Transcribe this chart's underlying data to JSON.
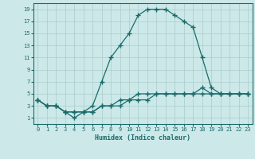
{
  "xlabel": "Humidex (Indice chaleur)",
  "bg_color": "#cce8e8",
  "grid_color": "#aacccc",
  "line_color": "#1a6b6b",
  "xlim": [
    -0.5,
    23.5
  ],
  "ylim": [
    0,
    20
  ],
  "xticks": [
    0,
    1,
    2,
    3,
    4,
    5,
    6,
    7,
    8,
    9,
    10,
    11,
    12,
    13,
    14,
    15,
    16,
    17,
    18,
    19,
    20,
    21,
    22,
    23
  ],
  "yticks": [
    1,
    3,
    5,
    7,
    9,
    11,
    13,
    15,
    17,
    19
  ],
  "line1_x": [
    0,
    1,
    2,
    3,
    4,
    5,
    6,
    7,
    8,
    9,
    10,
    11,
    12,
    13,
    14,
    15,
    16,
    17,
    18,
    19,
    20,
    21,
    22,
    23
  ],
  "line1_y": [
    4,
    3,
    3,
    2,
    1,
    2,
    3,
    7,
    11,
    13,
    15,
    18,
    19,
    19,
    19,
    18,
    17,
    16,
    11,
    6,
    5,
    5,
    5,
    5
  ],
  "line2_x": [
    0,
    1,
    2,
    3,
    4,
    5,
    6,
    7,
    8,
    9,
    10,
    11,
    12,
    13,
    14,
    15,
    16,
    17,
    18,
    19,
    20,
    21,
    22,
    23
  ],
  "line2_y": [
    4,
    3,
    3,
    2,
    2,
    2,
    2,
    3,
    3,
    4,
    4,
    5,
    5,
    5,
    5,
    5,
    5,
    5,
    6,
    5,
    5,
    5,
    5,
    5
  ],
  "line3_x": [
    0,
    1,
    2,
    3,
    4,
    5,
    6,
    7,
    8,
    9,
    10,
    11,
    12,
    13,
    14,
    15,
    16,
    17,
    18,
    19,
    20,
    21,
    22,
    23
  ],
  "line3_y": [
    4,
    3,
    3,
    2,
    2,
    2,
    2,
    3,
    3,
    3,
    4,
    4,
    4,
    5,
    5,
    5,
    5,
    5,
    5,
    5,
    5,
    5,
    5,
    5
  ]
}
